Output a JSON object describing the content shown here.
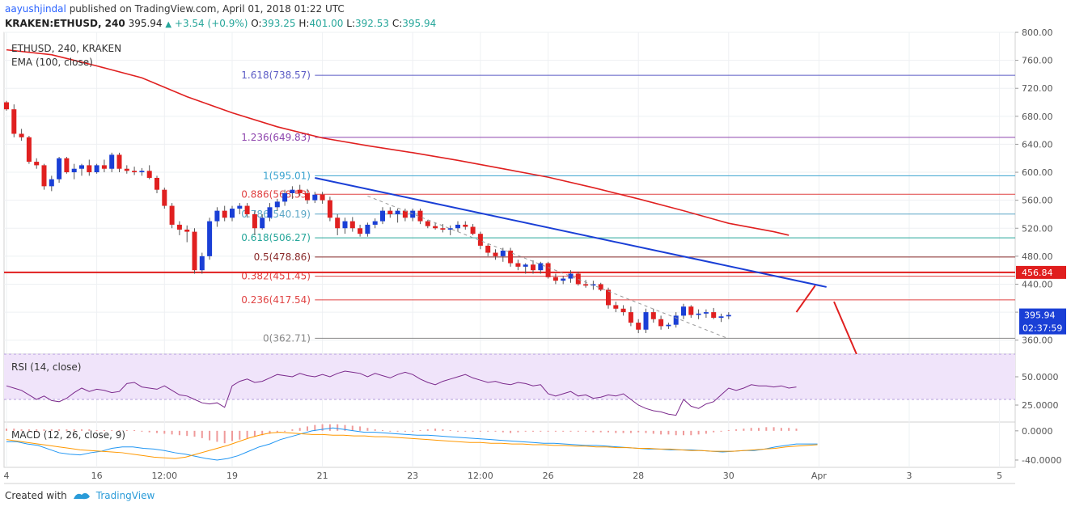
{
  "header": {
    "author": "aayushjindal",
    "published_text": "published on TradingView.com, April 01, 2018 01:22 UTC",
    "symbol": "KRAKEN:ETHUSD, 240",
    "last": "395.94",
    "change": "+3.54 (+0.9%)",
    "o_label": "O:",
    "o": "393.25",
    "h_label": "H:",
    "h": "401.00",
    "l_label": "L:",
    "l": "392.53",
    "c_label": "C:",
    "c": "395.94"
  },
  "footer": {
    "created_with": "Created with",
    "brand": "TradingView"
  },
  "chart_data": [
    {
      "type": "candlestick",
      "title": "ETHUSD, 240, KRAKEN",
      "indicator_label": "EMA (100, close)",
      "ylim": [
        340,
        800
      ],
      "y_ticks": [
        "800.00",
        "760.00",
        "720.00",
        "680.00",
        "640.00",
        "600.00",
        "560.00",
        "520.00",
        "480.00",
        "440.00",
        "400.00",
        "360.00"
      ],
      "y_tick_values": [
        800,
        760,
        720,
        680,
        640,
        600,
        560,
        520,
        480,
        440,
        400,
        360
      ],
      "x_ticks": [
        {
          "label": "4",
          "idx": 0
        },
        {
          "label": "16",
          "idx": 12
        },
        {
          "label": "12:00",
          "idx": 21
        },
        {
          "label": "19",
          "idx": 30
        },
        {
          "label": "21",
          "idx": 42
        },
        {
          "label": "23",
          "idx": 54
        },
        {
          "label": "12:00",
          "idx": 63
        },
        {
          "label": "26",
          "idx": 72
        },
        {
          "label": "28",
          "idx": 84
        },
        {
          "label": "30",
          "idx": 96
        },
        {
          "label": "Apr",
          "idx": 108
        },
        {
          "label": "3",
          "idx": 120
        },
        {
          "label": "5",
          "idx": 132
        }
      ],
      "candles": [
        [
          700,
          702,
          688,
          690
        ],
        [
          690,
          697,
          650,
          655
        ],
        [
          655,
          662,
          645,
          650
        ],
        [
          650,
          652,
          612,
          615
        ],
        [
          615,
          620,
          605,
          610
        ],
        [
          610,
          612,
          575,
          580
        ],
        [
          580,
          595,
          573,
          590
        ],
        [
          590,
          622,
          585,
          620
        ],
        [
          620,
          622,
          598,
          600
        ],
        [
          600,
          612,
          590,
          605
        ],
        [
          605,
          612,
          595,
          610
        ],
        [
          610,
          618,
          595,
          600
        ],
        [
          600,
          612,
          598,
          610
        ],
        [
          610,
          618,
          600,
          605
        ],
        [
          605,
          628,
          600,
          625
        ],
        [
          625,
          628,
          600,
          605
        ],
        [
          605,
          610,
          598,
          602
        ],
        [
          602,
          608,
          596,
          600
        ],
        [
          600,
          606,
          595,
          602
        ],
        [
          602,
          610,
          590,
          592
        ],
        [
          592,
          595,
          570,
          575
        ],
        [
          575,
          578,
          548,
          552
        ],
        [
          552,
          556,
          520,
          525
        ],
        [
          525,
          530,
          510,
          518
        ],
        [
          518,
          524,
          500,
          515
        ],
        [
          515,
          520,
          455,
          460
        ],
        [
          460,
          485,
          455,
          480
        ],
        [
          480,
          535,
          475,
          530
        ],
        [
          530,
          550,
          522,
          545
        ],
        [
          545,
          552,
          530,
          535
        ],
        [
          535,
          552,
          530,
          548
        ],
        [
          548,
          556,
          540,
          552
        ],
        [
          552,
          556,
          535,
          540
        ],
        [
          540,
          545,
          510,
          520
        ],
        [
          520,
          540,
          518,
          535
        ],
        [
          535,
          556,
          530,
          550
        ],
        [
          550,
          562,
          545,
          558
        ],
        [
          558,
          575,
          552,
          570
        ],
        [
          570,
          580,
          562,
          575
        ],
        [
          575,
          582,
          566,
          570
        ],
        [
          570,
          576,
          555,
          560
        ],
        [
          560,
          572,
          556,
          568
        ],
        [
          568,
          572,
          555,
          560
        ],
        [
          560,
          565,
          530,
          535
        ],
        [
          535,
          540,
          510,
          520
        ],
        [
          520,
          535,
          512,
          530
        ],
        [
          530,
          536,
          515,
          520
        ],
        [
          520,
          525,
          508,
          512
        ],
        [
          512,
          528,
          508,
          525
        ],
        [
          525,
          534,
          520,
          530
        ],
        [
          530,
          550,
          526,
          545
        ],
        [
          545,
          550,
          535,
          540
        ],
        [
          540,
          548,
          528,
          545
        ],
        [
          545,
          548,
          530,
          535
        ],
        [
          535,
          548,
          530,
          545
        ],
        [
          545,
          548,
          526,
          530
        ],
        [
          530,
          532,
          520,
          523
        ],
        [
          523,
          528,
          518,
          520
        ],
        [
          520,
          526,
          514,
          518
        ],
        [
          518,
          524,
          510,
          520
        ],
        [
          520,
          530,
          515,
          525
        ],
        [
          525,
          530,
          518,
          522
        ],
        [
          522,
          526,
          510,
          512
        ],
        [
          512,
          515,
          490,
          495
        ],
        [
          495,
          498,
          480,
          485
        ],
        [
          485,
          490,
          475,
          480
        ],
        [
          480,
          492,
          472,
          488
        ],
        [
          488,
          492,
          465,
          470
        ],
        [
          470,
          475,
          460,
          465
        ],
        [
          465,
          470,
          455,
          468
        ],
        [
          468,
          474,
          455,
          460
        ],
        [
          460,
          472,
          455,
          470
        ],
        [
          470,
          472,
          448,
          450
        ],
        [
          450,
          455,
          440,
          445
        ],
        [
          445,
          452,
          440,
          448
        ],
        [
          448,
          460,
          442,
          455
        ],
        [
          455,
          458,
          438,
          440
        ],
        [
          440,
          446,
          435,
          438
        ],
        [
          438,
          445,
          432,
          440
        ],
        [
          440,
          442,
          430,
          432
        ],
        [
          432,
          435,
          405,
          410
        ],
        [
          410,
          415,
          400,
          405
        ],
        [
          405,
          410,
          395,
          400
        ],
        [
          400,
          408,
          380,
          385
        ],
        [
          385,
          390,
          370,
          375
        ],
        [
          375,
          405,
          370,
          400
        ],
        [
          400,
          405,
          385,
          390
        ],
        [
          390,
          395,
          375,
          380
        ],
        [
          380,
          385,
          376,
          382
        ],
        [
          382,
          400,
          378,
          395
        ],
        [
          395,
          412,
          390,
          408
        ],
        [
          408,
          410,
          392,
          396
        ],
        [
          396,
          404,
          390,
          398
        ],
        [
          398,
          404,
          392,
          400
        ],
        [
          400,
          406,
          390,
          392
        ],
        [
          392,
          398,
          386,
          394
        ],
        [
          394,
          400,
          390,
          396
        ]
      ],
      "ema_100": [
        [
          0,
          775
        ],
        [
          6,
          768
        ],
        [
          12,
          752
        ],
        [
          18,
          735
        ],
        [
          24,
          708
        ],
        [
          30,
          685
        ],
        [
          36,
          665
        ],
        [
          42,
          649
        ],
        [
          48,
          638
        ],
        [
          54,
          628
        ],
        [
          60,
          617
        ],
        [
          66,
          605
        ],
        [
          72,
          593
        ],
        [
          78,
          578
        ],
        [
          84,
          562
        ],
        [
          90,
          545
        ],
        [
          96,
          527
        ],
        [
          102,
          515
        ],
        [
          104,
          510
        ]
      ],
      "fibonacci": [
        {
          "label": "1.618(738.57)",
          "value": 738.57,
          "color": "#5b5bc5"
        },
        {
          "label": "1.236(649.83)",
          "value": 649.83,
          "color": "#8e44ad"
        },
        {
          "label": "1(595.01)",
          "value": 595.01,
          "color": "#3aa3cf"
        },
        {
          "label": "0.886(568.53)",
          "value": 568.53,
          "color": "#e04343"
        },
        {
          "label": "0.786(540.19)",
          "value": 540.19,
          "color": "#5aa6c6"
        },
        {
          "label": "0.618(506.27)",
          "value": 506.27,
          "color": "#26a69a"
        },
        {
          "label": "0.5(478.86)",
          "value": 478.86,
          "color": "#8a2a2a"
        },
        {
          "label": "0.382(451.45)",
          "value": 451.45,
          "color": "#e04343"
        },
        {
          "label": "0.236(417.54)",
          "value": 417.54,
          "color": "#e04343"
        },
        {
          "label": "0(362.71)",
          "value": 362.71,
          "color": "#888888"
        }
      ],
      "horizontal_level": {
        "value": 456.84,
        "label": "456.84",
        "color": "#e01e1e"
      },
      "price_tag": {
        "label": "395.94",
        "countdown": "02:37:59",
        "color": "#1a3fd6"
      },
      "trendline": {
        "from": [
          41,
          592
        ],
        "to": [
          109,
          436
        ],
        "color": "#1a3fd6"
      },
      "dashed_line": {
        "from": [
          48,
          566
        ],
        "to": [
          96,
          362
        ],
        "color": "#999999"
      },
      "projection": [
        [
          105,
          400
        ],
        [
          107.5,
          438
        ],
        [
          110,
          415
        ],
        [
          113,
          340
        ]
      ]
    },
    {
      "type": "line",
      "title": "RSI (14, close)",
      "ylim": [
        10,
        70
      ],
      "y_ticks": [
        "50.0000",
        "25.0000"
      ],
      "y_tick_values": [
        50,
        25
      ],
      "band": [
        30,
        70
      ],
      "values": [
        42,
        40,
        38,
        34,
        30,
        33,
        29,
        28,
        31,
        36,
        40,
        37,
        39,
        38,
        36,
        37,
        44,
        45,
        41,
        40,
        39,
        42,
        38,
        34,
        33,
        30,
        27,
        26,
        27,
        23,
        42,
        46,
        48,
        45,
        46,
        49,
        52,
        51,
        50,
        53,
        51,
        50,
        52,
        50,
        53,
        55,
        54,
        53,
        50,
        53,
        51,
        49,
        52,
        54,
        52,
        48,
        45,
        43,
        46,
        48,
        50,
        52,
        49,
        47,
        45,
        46,
        44,
        43,
        45,
        44,
        42,
        43,
        35,
        33,
        35,
        37,
        33,
        34,
        31,
        32,
        34,
        33,
        35,
        30,
        25,
        22,
        20,
        19,
        17,
        16,
        30,
        24,
        22,
        26,
        28,
        34,
        40,
        38,
        40,
        43,
        42,
        42,
        41,
        42,
        40,
        41
      ]
    },
    {
      "type": "bar",
      "title": "MACD (12, 26, close, 9)",
      "ylim": [
        -50,
        12
      ],
      "y_ticks": [
        "0.0000",
        "-40.0000"
      ],
      "y_tick_values": [
        0,
        -40
      ],
      "histogram": [
        3,
        3,
        2,
        2,
        2,
        2,
        2,
        2,
        2,
        2,
        2,
        2,
        1,
        1,
        1,
        1,
        1,
        1,
        -1,
        -2,
        -3,
        -4,
        -5,
        -6,
        -7,
        -8,
        -10,
        -13,
        -15,
        -17,
        -14,
        -12,
        -10,
        -8,
        -6,
        -4,
        -2,
        0,
        2,
        4,
        6,
        8,
        9,
        9,
        9,
        8,
        7,
        6,
        4,
        2,
        1,
        0,
        0,
        0,
        0,
        1,
        2,
        3,
        2,
        1,
        0,
        0,
        0,
        0,
        0,
        -1,
        -2,
        -3,
        -2,
        -1,
        -1,
        0,
        0,
        0,
        -1,
        -1,
        -1,
        -1,
        -2,
        -2,
        -2,
        -3,
        -3,
        -3,
        -2,
        -3,
        -4,
        -5,
        -5,
        -6,
        -6,
        -6,
        -5,
        -4,
        -2,
        -1,
        1,
        2,
        3,
        4,
        4,
        5,
        5,
        4,
        4,
        3
      ],
      "macd": [
        -15,
        -15,
        -18,
        -20,
        -25,
        -30,
        -32,
        -33,
        -30,
        -28,
        -24,
        -22,
        -22,
        -24,
        -25,
        -27,
        -30,
        -32,
        -35,
        -38,
        -40,
        -38,
        -34,
        -28,
        -22,
        -18,
        -12,
        -8,
        -4,
        0,
        2,
        4,
        2,
        0,
        -2,
        -2,
        -3,
        -4,
        -5,
        -6,
        -6,
        -7,
        -8,
        -9,
        -10,
        -11,
        -12,
        -13,
        -14,
        -15,
        -16,
        -17,
        -17,
        -18,
        -19,
        -20,
        -20,
        -21,
        -22,
        -23,
        -24,
        -25,
        -25,
        -26,
        -26,
        -26,
        -27,
        -28,
        -29,
        -28,
        -27,
        -27,
        -25,
        -22,
        -20,
        -18,
        -18,
        -18
      ],
      "signal": [
        -12,
        -14,
        -16,
        -18,
        -20,
        -22,
        -24,
        -26,
        -27,
        -28,
        -29,
        -30,
        -32,
        -34,
        -36,
        -37,
        -38,
        -36,
        -32,
        -28,
        -24,
        -20,
        -15,
        -10,
        -6,
        -3,
        -2,
        -3,
        -4,
        -5,
        -5,
        -6,
        -6,
        -7,
        -7,
        -8,
        -8,
        -9,
        -10,
        -11,
        -12,
        -13,
        -14,
        -15,
        -16,
        -16,
        -17,
        -17,
        -18,
        -18,
        -19,
        -19,
        -20,
        -20,
        -21,
        -21,
        -22,
        -22,
        -23,
        -23,
        -24,
        -24,
        -25,
        -25,
        -26,
        -27,
        -27,
        -28,
        -28,
        -28,
        -27,
        -26,
        -25,
        -24,
        -22,
        -21,
        -20,
        -19
      ],
      "line_colors": {
        "macd": "#2196f3",
        "signal": "#ff9800"
      }
    }
  ]
}
